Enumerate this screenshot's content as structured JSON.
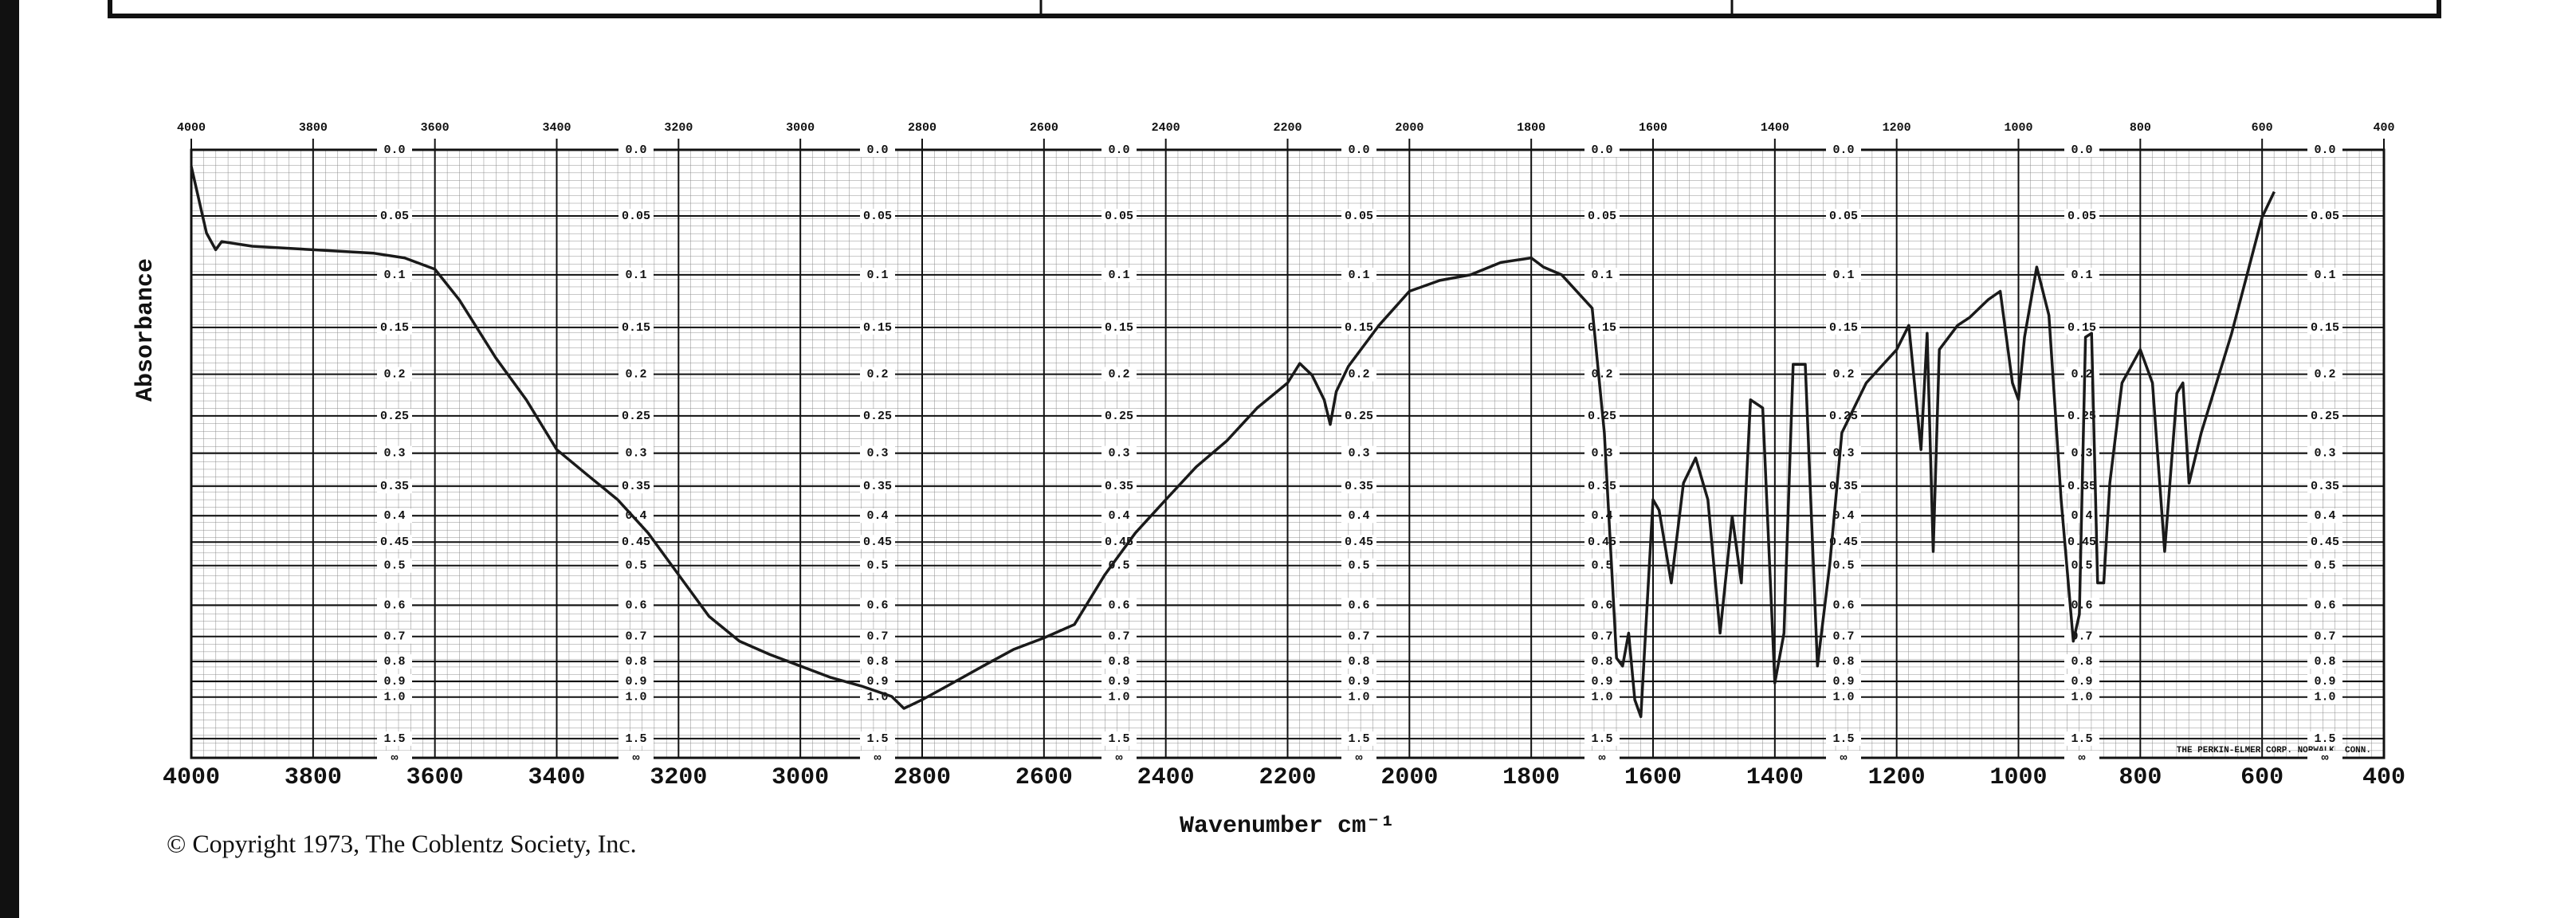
{
  "chart_data": {
    "type": "line",
    "xlabel": "Wavenumber cm⁻¹",
    "ylabel": "Absorbance",
    "footer": "© Copyright 1973, The Coblentz Society, Inc.",
    "annotation": "THE PERKIN-ELMER CORP. NORWALK, CONN.",
    "color": "#1a1a1a",
    "xlim": [
      4000,
      400
    ],
    "xticks": [
      4000,
      3800,
      3600,
      3400,
      3200,
      3000,
      2800,
      2600,
      2400,
      2200,
      2000,
      1800,
      1600,
      1400,
      1200,
      1000,
      800,
      600,
      400
    ],
    "top_xticks": [
      4000,
      3800,
      3600,
      3400,
      3200,
      3000,
      2800,
      2600,
      2400,
      2200,
      2000,
      1800,
      1600,
      1400,
      1200,
      1000,
      800,
      600,
      400
    ],
    "ylim": [
      0,
      null
    ],
    "yscale": "absorbance",
    "yticks": [
      {
        "value": 0,
        "label": "0.0"
      },
      0.05,
      0.1,
      0.15,
      0.2,
      0.25,
      0.3,
      0.35,
      0.4,
      0.45,
      0.5,
      0.6,
      0.7,
      0.8,
      0.9,
      {
        "value": 1,
        "label": "1.0"
      },
      1.5,
      {
        "value": null,
        "label": "∞"
      }
    ],
    "grid": true,
    "x": [
      4000,
      3975,
      3960,
      3950,
      3900,
      3800,
      3700,
      3650,
      3600,
      3560,
      3500,
      3450,
      3400,
      3350,
      3300,
      3250,
      3200,
      3150,
      3100,
      3050,
      3000,
      2950,
      2900,
      2850,
      2830,
      2800,
      2750,
      2700,
      2650,
      2600,
      2550,
      2500,
      2450,
      2400,
      2350,
      2300,
      2250,
      2200,
      2180,
      2160,
      2140,
      2130,
      2120,
      2100,
      2050,
      2000,
      1950,
      1900,
      1850,
      1800,
      1780,
      1750,
      1700,
      1680,
      1660,
      1650,
      1640,
      1630,
      1620,
      1600,
      1590,
      1570,
      1550,
      1530,
      1510,
      1490,
      1470,
      1455,
      1440,
      1420,
      1400,
      1385,
      1370,
      1350,
      1330,
      1310,
      1290,
      1250,
      1200,
      1180,
      1160,
      1150,
      1140,
      1130,
      1100,
      1080,
      1050,
      1030,
      1010,
      1000,
      990,
      970,
      950,
      930,
      910,
      900,
      890,
      880,
      870,
      860,
      850,
      830,
      800,
      780,
      760,
      740,
      730,
      720,
      700,
      650,
      600,
      580
    ],
    "values": [
      0.012,
      0.064,
      0.078,
      0.071,
      0.075,
      0.078,
      0.081,
      0.085,
      0.095,
      0.123,
      0.182,
      0.23,
      0.295,
      0.332,
      0.372,
      0.432,
      0.521,
      0.633,
      0.717,
      0.77,
      0.821,
      0.879,
      0.928,
      0.996,
      1.09,
      1.02,
      0.91,
      0.821,
      0.749,
      0.705,
      0.659,
      0.521,
      0.432,
      0.372,
      0.32,
      0.283,
      0.24,
      0.21,
      0.188,
      0.201,
      0.23,
      0.261,
      0.22,
      0.191,
      0.148,
      0.115,
      0.105,
      0.1,
      0.089,
      0.085,
      0.093,
      0.1,
      0.131,
      0.272,
      0.785,
      0.821,
      0.688,
      1.02,
      1.17,
      0.372,
      0.39,
      0.541,
      0.345,
      0.307,
      0.372,
      0.688,
      0.401,
      0.541,
      0.23,
      0.24,
      0.91,
      0.688,
      0.189,
      0.189,
      0.821,
      0.5,
      0.272,
      0.21,
      0.173,
      0.148,
      0.295,
      0.156,
      0.469,
      0.173,
      0.148,
      0.14,
      0.123,
      0.115,
      0.21,
      0.23,
      0.16,
      0.093,
      0.138,
      0.372,
      0.717,
      0.627,
      0.16,
      0.156,
      0.541,
      0.541,
      0.345,
      0.21,
      0.173,
      0.21,
      0.469,
      0.222,
      0.21,
      0.345,
      0.272,
      0.156,
      0.051,
      0.031
    ]
  }
}
